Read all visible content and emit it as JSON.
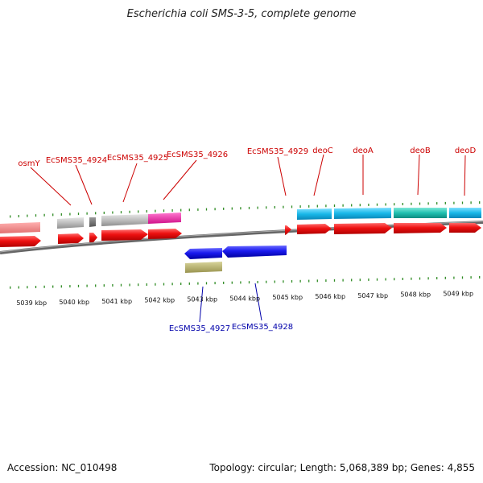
{
  "title": "Escherichia coli SMS-3-5, complete genome",
  "footer": {
    "accession": "Accession: NC_010498",
    "stats": "Topology: circular; Length: 5,068,389 bp; Genes: 4,855"
  },
  "colors": {
    "forward_cds": "#ee1111",
    "reverse_cds": "#1a1aee",
    "forward_label": "#cc0000",
    "reverse_label": "#0000aa",
    "tick": "#2e8b22",
    "backbone": "#777777"
  },
  "ticks": [
    {
      "kbp": 5039,
      "label": "5039 kbp"
    },
    {
      "kbp": 5040,
      "label": "5040 kbp"
    },
    {
      "kbp": 5041,
      "label": "5041 kbp"
    },
    {
      "kbp": 5042,
      "label": "5042 kbp"
    },
    {
      "kbp": 5043,
      "label": "5043 kbp"
    },
    {
      "kbp": 5044,
      "label": "5044 kbp"
    },
    {
      "kbp": 5045,
      "label": "5045 kbp"
    },
    {
      "kbp": 5046,
      "label": "5046 kbp"
    },
    {
      "kbp": 5047,
      "label": "5047 kbp"
    },
    {
      "kbp": 5048,
      "label": "5048 kbp"
    },
    {
      "kbp": 5049,
      "label": "5049 kbp"
    }
  ],
  "forward_labels": [
    {
      "name": "osmY"
    },
    {
      "name": "EcSMS35_4924"
    },
    {
      "name": "EcSMS35_4925"
    },
    {
      "name": "EcSMS35_4926"
    },
    {
      "name": "EcSMS35_4929"
    },
    {
      "name": "deoC"
    },
    {
      "name": "deoA"
    },
    {
      "name": "deoB"
    },
    {
      "name": "deoD"
    }
  ],
  "reverse_labels": [
    {
      "name": "EcSMS35_4927"
    },
    {
      "name": "EcSMS35_4928"
    }
  ]
}
